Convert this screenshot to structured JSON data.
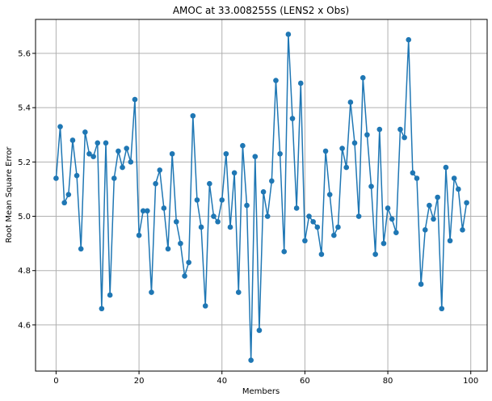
{
  "chart_data": {
    "type": "line",
    "title": "AMOC at 33.008255S (LENS2 x Obs)",
    "xlabel": "Members",
    "ylabel": "Root Mean Square Error",
    "xlim": [
      -4.95,
      103.95
    ],
    "ylim": [
      4.43,
      5.725
    ],
    "xticks": [
      0,
      20,
      40,
      60,
      80,
      100
    ],
    "yticks": [
      4.6,
      4.8,
      5.0,
      5.2,
      5.4,
      5.6
    ],
    "grid": true,
    "legend": "none",
    "marker": "circle",
    "colors": {
      "series": "#1f77b4",
      "grid": "#b0b0b0",
      "axes": "#000000"
    },
    "series": [
      {
        "x": [
          0,
          1,
          2,
          3,
          4,
          5,
          6,
          7,
          8,
          9,
          10,
          11,
          12,
          13,
          14,
          15,
          16,
          17,
          18,
          19,
          20,
          21,
          22,
          23,
          24,
          25,
          26,
          27,
          28,
          29,
          30,
          31,
          32,
          33,
          34,
          35,
          36,
          37,
          38,
          39,
          40,
          41,
          42,
          43,
          44,
          45,
          46,
          47,
          48,
          49,
          50,
          51,
          52,
          53,
          54,
          55,
          56,
          57,
          58,
          59,
          60,
          61,
          62,
          63,
          64,
          65,
          66,
          67,
          68,
          69,
          70,
          71,
          72,
          73,
          74,
          75,
          76,
          77,
          78,
          79,
          80,
          81,
          82,
          83,
          84,
          85,
          86,
          87,
          88,
          89,
          90,
          91,
          92,
          93,
          94,
          95,
          96,
          97,
          98,
          99
        ],
        "values": [
          5.14,
          5.33,
          5.05,
          5.08,
          5.28,
          5.15,
          4.88,
          5.31,
          5.23,
          5.22,
          5.27,
          4.66,
          5.27,
          4.71,
          5.14,
          5.24,
          5.18,
          5.25,
          5.2,
          5.43,
          4.93,
          5.02,
          5.02,
          4.72,
          5.12,
          5.17,
          5.03,
          4.88,
          5.23,
          4.98,
          4.9,
          4.78,
          4.83,
          5.37,
          5.06,
          4.96,
          4.67,
          5.12,
          5.0,
          4.98,
          5.06,
          5.23,
          4.96,
          5.16,
          4.72,
          5.26,
          5.04,
          4.47,
          5.22,
          4.58,
          5.09,
          5.0,
          5.13,
          5.5,
          5.23,
          4.87,
          5.67,
          5.36,
          5.03,
          5.49,
          4.91,
          5.0,
          4.98,
          4.96,
          4.86,
          5.24,
          5.08,
          4.93,
          4.96,
          5.25,
          5.18,
          5.42,
          5.27,
          5.0,
          5.51,
          5.3,
          5.11,
          4.86,
          5.32,
          4.9,
          5.03,
          4.99,
          4.94,
          5.32,
          5.29,
          5.65,
          5.16,
          5.14,
          4.75,
          4.95,
          5.04,
          4.99,
          5.07,
          4.66,
          5.18,
          4.91,
          5.14,
          5.1,
          4.95,
          5.05
        ]
      }
    ]
  }
}
